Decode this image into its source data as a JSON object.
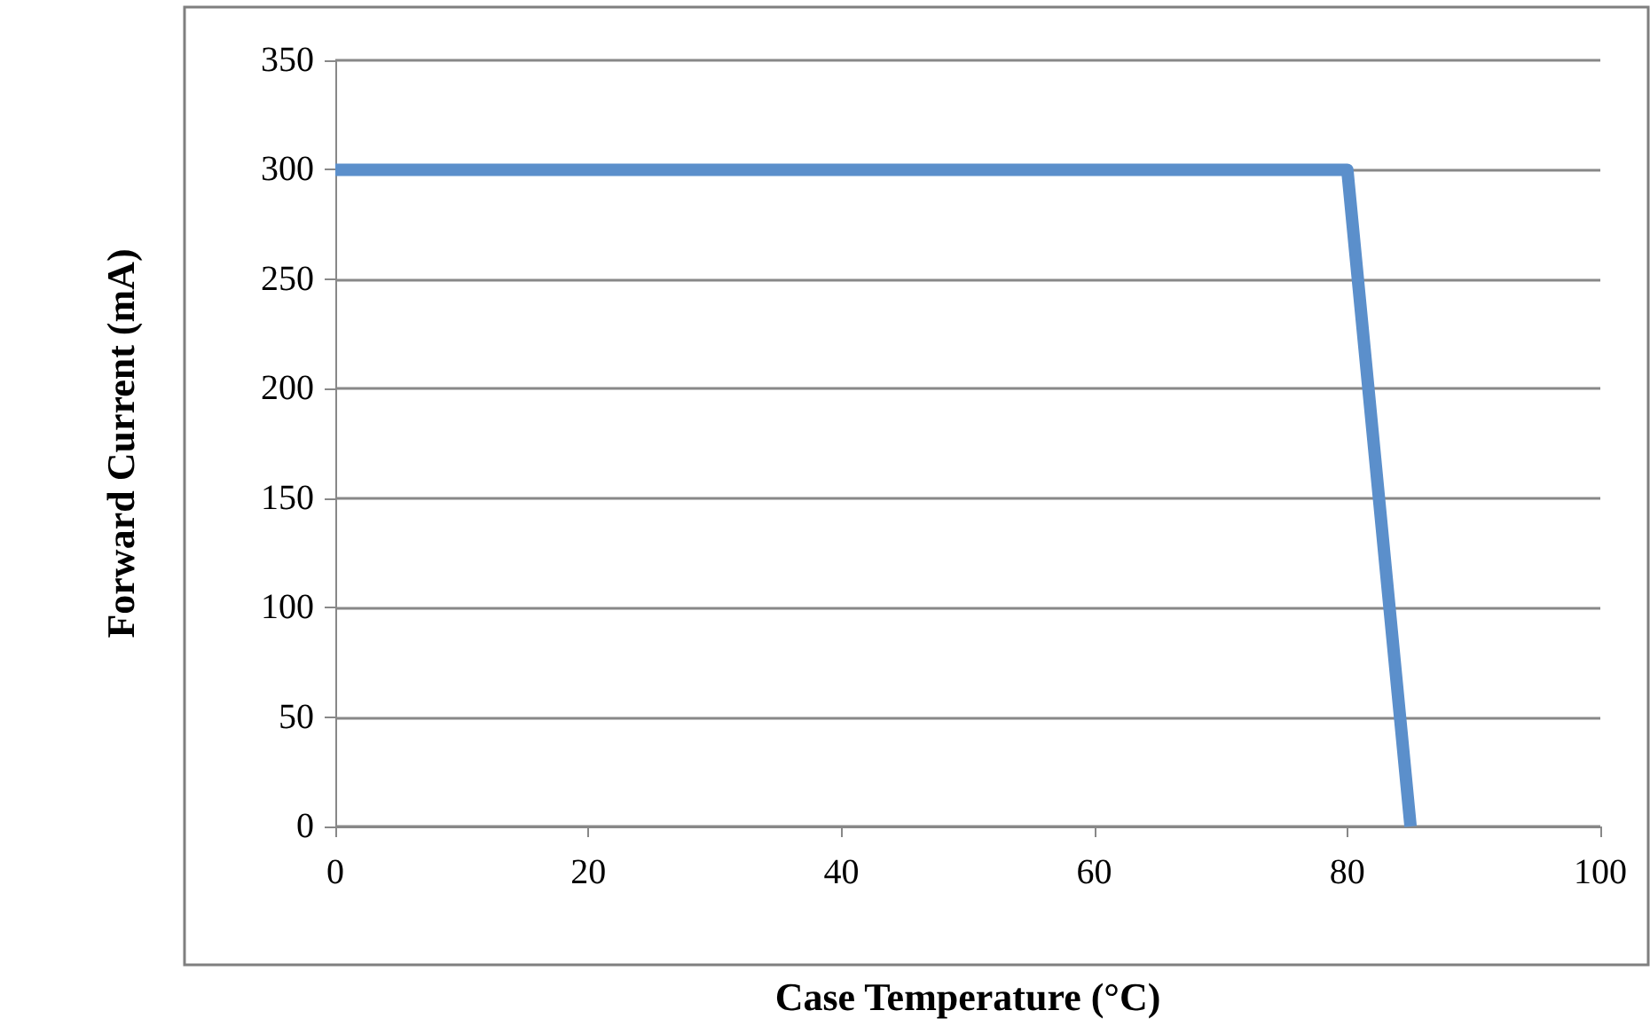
{
  "chart_data": {
    "type": "line",
    "xlabel": "Case Temperature (°C)",
    "ylabel": "Forward Current (mA)",
    "x": [
      0,
      80,
      85
    ],
    "series": [
      {
        "color": "#5b8fcb",
        "values": [
          300,
          300,
          0
        ]
      }
    ],
    "xlim": [
      0,
      100
    ],
    "xticks": [
      0,
      20,
      40,
      60,
      80,
      100
    ],
    "ylim": [
      0,
      350
    ],
    "yticks": [
      0,
      50,
      100,
      150,
      200,
      250,
      300,
      350
    ],
    "grid": "y",
    "marker": "none",
    "line_style": "solid"
  }
}
